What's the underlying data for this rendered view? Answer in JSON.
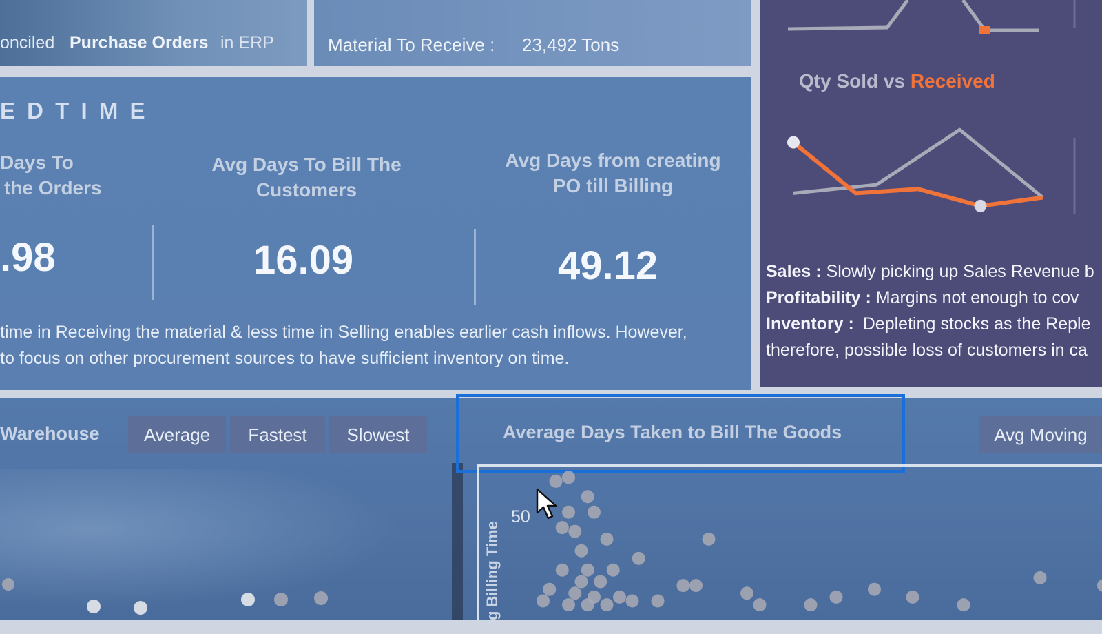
{
  "header": {
    "reconciled_prefix": "onciled",
    "reconciled_bold": "Purchase Orders",
    "reconciled_suffix": "in ERP",
    "material_label": "Material To Receive :",
    "material_value": "23,492 Tons"
  },
  "section": {
    "title": "E D   T I M E",
    "metrics": [
      {
        "label_line1": "Days  To",
        "label_line2": "the Orders",
        "value": ".98"
      },
      {
        "label_line1": "Avg Days To Bill The",
        "label_line2": "Customers",
        "value": "16.09"
      },
      {
        "label_line1": "Avg Days from creating",
        "label_line2": "PO till Billing",
        "value": "49.12"
      }
    ],
    "note_line1": "time in Receiving the material & less time in Selling enables earlier cash inflows. However,",
    "note_line2": "to focus on other procurement sources to have sufficient inventory on time."
  },
  "right_panel": {
    "chart_title_part1": "Qty Sold vs",
    "chart_title_part2": "Received",
    "sales_label": "Sales :",
    "sales_text": "Slowly picking up Sales Revenue b",
    "profit_label": "Profitability :",
    "profit_text": "Margins not enough to cov",
    "inventory_label": "Inventory :",
    "inventory_text": "Depleting stocks as the Reple",
    "inventory_text2": "therefore, possible loss of customers in ca",
    "colors": {
      "accent": "#f0733a",
      "series_grey": "#a8aab8"
    }
  },
  "bottom": {
    "warehouse_label": "Warehouse",
    "slicers": [
      "Average",
      "Fastest",
      "Slowest"
    ],
    "chart_title": "Average Days Taken to Bill The Goods",
    "avg_moving_button": "Avg Moving",
    "y_tick": "50",
    "y_axis_label": "g Billing Time"
  },
  "chart_data": [
    {
      "type": "line",
      "title": "Qty Sold vs Received",
      "series": [
        {
          "name": "Qty Sold",
          "values": [
            0.2,
            0.3,
            0.95,
            0.15
          ]
        },
        {
          "name": "Received",
          "values": [
            0.8,
            0.2,
            0.25,
            0.05,
            0.15
          ]
        }
      ]
    },
    {
      "type": "scatter",
      "title": "Average Days Taken to Bill The Goods",
      "ylabel": "g Billing Time",
      "yticks": [
        "50"
      ],
      "points": [
        [
          2.0,
          52
        ],
        [
          3.0,
          53
        ],
        [
          4.5,
          48
        ],
        [
          3.0,
          44
        ],
        [
          5.0,
          44
        ],
        [
          2.5,
          40
        ],
        [
          3.5,
          39
        ],
        [
          6.0,
          37
        ],
        [
          4.0,
          34
        ],
        [
          8.5,
          32
        ],
        [
          14.0,
          37
        ],
        [
          2.5,
          29
        ],
        [
          4.5,
          29
        ],
        [
          6.5,
          29
        ],
        [
          4.0,
          26
        ],
        [
          5.5,
          26
        ],
        [
          1.5,
          24
        ],
        [
          3.5,
          23
        ],
        [
          5.0,
          22
        ],
        [
          7.0,
          22
        ],
        [
          12.0,
          25
        ],
        [
          13.0,
          25
        ],
        [
          17.0,
          23
        ],
        [
          24.0,
          22
        ],
        [
          27.0,
          24
        ],
        [
          30.0,
          22
        ],
        [
          1.0,
          21
        ],
        [
          3.0,
          20
        ],
        [
          4.5,
          20
        ],
        [
          6.0,
          20
        ],
        [
          8.0,
          21
        ],
        [
          10.0,
          21
        ],
        [
          18.0,
          20
        ],
        [
          22.0,
          20
        ],
        [
          34.0,
          20
        ],
        [
          40.0,
          27
        ],
        [
          45.0,
          25
        ]
      ]
    }
  ]
}
